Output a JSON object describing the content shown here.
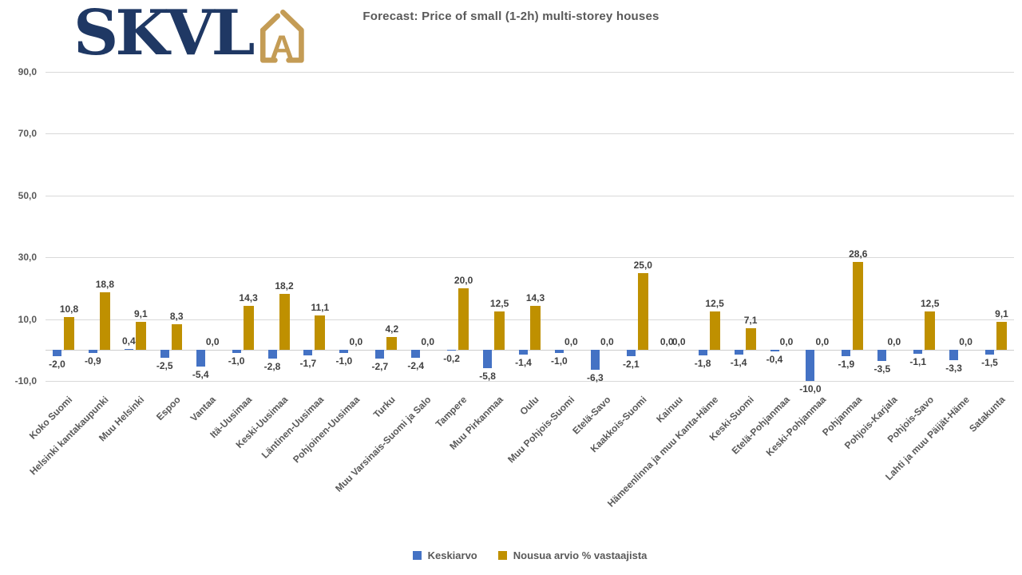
{
  "logo": {
    "text": "SKVL",
    "icon": "house-a-icon"
  },
  "header": {
    "title": "Forecast: Price of small (1-2h) multi-storey houses"
  },
  "colors": {
    "keskiarvo_blue": "#4472C4",
    "nousua_gold": "#BF9000",
    "logo_navy": "#1F3864",
    "logo_gold": "#C49C55",
    "gridline_gray": "#D9D9D9",
    "axis_text_gray": "#595959",
    "value_text_gray": "#404040"
  },
  "chart_data": {
    "type": "bar",
    "title": "Forecast: Price of small (1-2h) multi-storey houses",
    "categories": [
      "Koko Suomi",
      "Helsinki kantakaupunki",
      "Muu Helsinki",
      "Espoo",
      "Vantaa",
      "Itä-Uusimaa",
      "Keski-Uusimaa",
      "Läntinen-Uusimaa",
      "Pohjoinen-Uusimaa",
      "Turku",
      "Muu Varsinais-Suomi ja Salo",
      "Tampere",
      "Muu Pirkanmaa",
      "Oulu",
      "Muu Pohjois-Suomi",
      "Etelä-Savo",
      "Kaakkois-Suomi",
      "Kainuu",
      "Hämeenlinna ja muu Kanta-Häme",
      "Keski-Suomi",
      "Etelä-Pohjanmaa",
      "Keski-Pohjanmaa",
      "Pohjanmaa",
      "Pohjois-Karjala",
      "Pohjois-Savo",
      "Lahti ja muu Päijät-Häme",
      "Satakunta"
    ],
    "series": [
      {
        "name": "Keskiarvo",
        "color": "#4472C4",
        "values": [
          -2.0,
          -0.9,
          0.4,
          -2.5,
          -5.4,
          -1.0,
          -2.8,
          -1.7,
          -1.0,
          -2.7,
          -2.4,
          -0.2,
          -5.8,
          -1.4,
          -1.0,
          -6.3,
          -2.1,
          0.0,
          -1.8,
          -1.4,
          -0.4,
          -10.0,
          -1.9,
          -3.5,
          -1.1,
          -3.3,
          -1.5
        ]
      },
      {
        "name": "Nousua arvio % vastaajista",
        "color": "#BF9000",
        "values": [
          10.8,
          18.8,
          9.1,
          8.3,
          0.0,
          14.3,
          18.2,
          11.1,
          0.0,
          4.2,
          0.0,
          20.0,
          12.5,
          14.3,
          0.0,
          0.0,
          25.0,
          0.0,
          12.5,
          7.1,
          0.0,
          0.0,
          28.6,
          0.0,
          12.5,
          0.0,
          9.1
        ]
      }
    ],
    "ylim": [
      -10,
      90
    ],
    "y_ticks": [
      90,
      70,
      50,
      30,
      10,
      -10
    ],
    "xlabel": "",
    "ylabel": "",
    "grid": "horizontal",
    "legend_position": "bottom",
    "number_format": "decimal-comma-1dp",
    "data_labels": true
  }
}
